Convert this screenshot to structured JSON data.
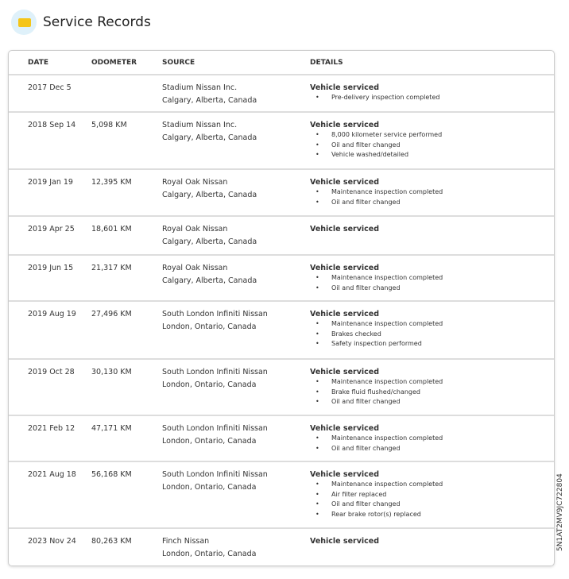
{
  "header": {
    "title": "Service Records",
    "icon": "folder-icon"
  },
  "columns": [
    "DATE",
    "ODOMETER",
    "SOURCE",
    "DETAILS"
  ],
  "records": [
    {
      "date": "2017 Dec 5",
      "odometer": "",
      "source": "Stadium Nissan Inc.",
      "location": "Calgary, Alberta, Canada",
      "heading": "Vehicle serviced",
      "items": [
        "Pre-delivery inspection completed"
      ]
    },
    {
      "date": "2018 Sep 14",
      "odometer": "5,098 KM",
      "source": "Stadium Nissan Inc.",
      "location": "Calgary, Alberta, Canada",
      "heading": "Vehicle serviced",
      "items": [
        "8,000 kilometer service performed",
        "Oil and filter changed",
        "Vehicle washed/detailed"
      ]
    },
    {
      "date": "2019 Jan 19",
      "odometer": "12,395 KM",
      "source": "Royal Oak Nissan",
      "location": "Calgary, Alberta, Canada",
      "heading": "Vehicle serviced",
      "items": [
        "Maintenance inspection completed",
        "Oil and filter changed"
      ]
    },
    {
      "date": "2019 Apr 25",
      "odometer": "18,601 KM",
      "source": "Royal Oak Nissan",
      "location": "Calgary, Alberta, Canada",
      "heading": "Vehicle serviced",
      "items": []
    },
    {
      "date": "2019 Jun 15",
      "odometer": "21,317 KM",
      "source": "Royal Oak Nissan",
      "location": "Calgary, Alberta, Canada",
      "heading": "Vehicle serviced",
      "items": [
        "Maintenance inspection completed",
        "Oil and filter changed"
      ]
    },
    {
      "date": "2019 Aug 19",
      "odometer": "27,496 KM",
      "source": "South London Infiniti Nissan",
      "location": "London, Ontario, Canada",
      "heading": "Vehicle serviced",
      "items": [
        "Maintenance inspection completed",
        "Brakes checked",
        "Safety inspection performed"
      ]
    },
    {
      "date": "2019 Oct 28",
      "odometer": "30,130 KM",
      "source": "South London Infiniti Nissan",
      "location": "London, Ontario, Canada",
      "heading": "Vehicle serviced",
      "items": [
        "Maintenance inspection completed",
        "Brake fluid flushed/changed",
        "Oil and filter changed"
      ]
    },
    {
      "date": "2021 Feb 12",
      "odometer": "47,171 KM",
      "source": "South London Infiniti Nissan",
      "location": "London, Ontario, Canada",
      "heading": "Vehicle serviced",
      "items": [
        "Maintenance inspection completed",
        "Oil and filter changed"
      ]
    },
    {
      "date": "2021 Aug 18",
      "odometer": "56,168 KM",
      "source": "South London Infiniti Nissan",
      "location": "London, Ontario, Canada",
      "heading": "Vehicle serviced",
      "items": [
        "Maintenance inspection completed",
        "Air filter replaced",
        "Oil and filter changed",
        "Rear brake rotor(s) replaced"
      ]
    },
    {
      "date": "2023 Nov 24",
      "odometer": "80,263 KM",
      "source": "Finch Nissan",
      "location": "London, Ontario, Canada",
      "heading": "Vehicle serviced",
      "items": []
    }
  ],
  "vin": "5N1AT2MV9JC722804"
}
